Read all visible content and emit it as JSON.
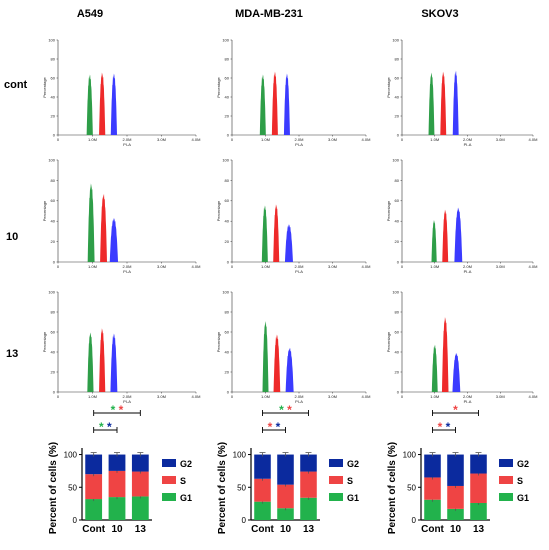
{
  "colors": {
    "G1": "#22b24c",
    "S": "#ef4444",
    "G2": "#0b2a9e",
    "peak_G1": "#2e9e48",
    "peak_S": "#ee2a2a",
    "peak_G2": "#3b3bff"
  },
  "columns": [
    "A549",
    "MDA-MB-231",
    "SKOV3"
  ],
  "rows": [
    "cont",
    "10",
    "13"
  ],
  "histogram_axis": {
    "x_ticks": [
      "0",
      "1.0M",
      "2.0M",
      "3.0M",
      "4.0M"
    ],
    "y_ticks": [
      "0",
      "20",
      "40",
      "60",
      "80",
      "100"
    ],
    "x_label": "PI-A",
    "y_label": "Percentage"
  },
  "bar_axis": {
    "y_ticks": [
      "0",
      "50",
      "100"
    ],
    "y_label": "Percent of cells (%)",
    "categories": [
      "Cont",
      "10",
      "13"
    ],
    "legend": [
      "G2",
      "S",
      "G1"
    ]
  },
  "significance": {
    "star": "*"
  },
  "chart_data": [
    {
      "type": "area",
      "panel": "A549-cont",
      "x_range": [
        0,
        4.0
      ],
      "ylim": [
        0,
        100
      ],
      "peaks": [
        {
          "phase": "G1",
          "center": 0.92,
          "height": 62,
          "width": 0.09
        },
        {
          "phase": "S",
          "center": 1.28,
          "height": 64,
          "width": 0.09
        },
        {
          "phase": "G2",
          "center": 1.62,
          "height": 63,
          "width": 0.09
        }
      ]
    },
    {
      "type": "area",
      "panel": "MDA-MB-231-cont",
      "x_range": [
        0,
        4.0
      ],
      "ylim": [
        0,
        100
      ],
      "peaks": [
        {
          "phase": "G1",
          "center": 0.92,
          "height": 62,
          "width": 0.09
        },
        {
          "phase": "S",
          "center": 1.28,
          "height": 65,
          "width": 0.09
        },
        {
          "phase": "G2",
          "center": 1.64,
          "height": 63,
          "width": 0.09
        }
      ]
    },
    {
      "type": "area",
      "panel": "SKOV3-cont",
      "x_range": [
        0,
        4.0
      ],
      "ylim": [
        0,
        100
      ],
      "peaks": [
        {
          "phase": "G1",
          "center": 0.9,
          "height": 64,
          "width": 0.09
        },
        {
          "phase": "S",
          "center": 1.26,
          "height": 65,
          "width": 0.09
        },
        {
          "phase": "G2",
          "center": 1.64,
          "height": 66,
          "width": 0.09
        }
      ]
    },
    {
      "type": "area",
      "panel": "A549-10",
      "x_range": [
        0,
        4.0
      ],
      "ylim": [
        0,
        100
      ],
      "peaks": [
        {
          "phase": "G1",
          "center": 0.96,
          "height": 75,
          "width": 0.1
        },
        {
          "phase": "S",
          "center": 1.32,
          "height": 65,
          "width": 0.1
        },
        {
          "phase": "G2",
          "center": 1.62,
          "height": 42,
          "width": 0.12
        }
      ]
    },
    {
      "type": "area",
      "panel": "MDA-MB-231-10",
      "x_range": [
        0,
        4.0
      ],
      "ylim": [
        0,
        100
      ],
      "peaks": [
        {
          "phase": "G1",
          "center": 0.98,
          "height": 54,
          "width": 0.09
        },
        {
          "phase": "S",
          "center": 1.32,
          "height": 55,
          "width": 0.09
        },
        {
          "phase": "G2",
          "center": 1.7,
          "height": 36,
          "width": 0.12
        }
      ]
    },
    {
      "type": "area",
      "panel": "SKOV3-10",
      "x_range": [
        0,
        4.0
      ],
      "ylim": [
        0,
        100
      ],
      "peaks": [
        {
          "phase": "G1",
          "center": 0.98,
          "height": 40,
          "width": 0.08
        },
        {
          "phase": "S",
          "center": 1.32,
          "height": 50,
          "width": 0.09
        },
        {
          "phase": "G2",
          "center": 1.72,
          "height": 52,
          "width": 0.12
        }
      ]
    },
    {
      "type": "area",
      "panel": "A549-13",
      "x_range": [
        0,
        4.0
      ],
      "ylim": [
        0,
        100
      ],
      "peaks": [
        {
          "phase": "G1",
          "center": 0.94,
          "height": 58,
          "width": 0.09
        },
        {
          "phase": "S",
          "center": 1.28,
          "height": 62,
          "width": 0.09
        },
        {
          "phase": "G2",
          "center": 1.62,
          "height": 57,
          "width": 0.1
        }
      ]
    },
    {
      "type": "area",
      "panel": "MDA-MB-231-13",
      "x_range": [
        0,
        4.0
      ],
      "ylim": [
        0,
        100
      ],
      "peaks": [
        {
          "phase": "G1",
          "center": 1.0,
          "height": 69,
          "width": 0.09
        },
        {
          "phase": "S",
          "center": 1.34,
          "height": 56,
          "width": 0.1
        },
        {
          "phase": "G2",
          "center": 1.72,
          "height": 43,
          "width": 0.12
        }
      ]
    },
    {
      "type": "area",
      "panel": "SKOV3-13",
      "x_range": [
        0,
        4.0
      ],
      "ylim": [
        0,
        100
      ],
      "peaks": [
        {
          "phase": "G1",
          "center": 1.0,
          "height": 46,
          "width": 0.09
        },
        {
          "phase": "S",
          "center": 1.32,
          "height": 73,
          "width": 0.1
        },
        {
          "phase": "G2",
          "center": 1.66,
          "height": 38,
          "width": 0.12
        }
      ]
    },
    {
      "type": "bar",
      "panel": "A549-bars",
      "stacked": true,
      "categories": [
        "Cont",
        "10",
        "13"
      ],
      "ylim": [
        0,
        110
      ],
      "series": [
        {
          "name": "G1",
          "values": [
            32,
            35,
            36
          ]
        },
        {
          "name": "S",
          "values": [
            38,
            40,
            38
          ]
        },
        {
          "name": "G2",
          "values": [
            30,
            25,
            26
          ]
        }
      ],
      "significance_brackets": [
        {
          "from": "Cont",
          "to": "10",
          "level": 1,
          "stars": [
            "G1",
            "G2"
          ]
        },
        {
          "from": "Cont",
          "to": "13",
          "level": 2,
          "stars": [
            "G1",
            "S"
          ]
        }
      ]
    },
    {
      "type": "bar",
      "panel": "MDA-MB-231-bars",
      "stacked": true,
      "categories": [
        "Cont",
        "10",
        "13"
      ],
      "ylim": [
        0,
        110
      ],
      "series": [
        {
          "name": "G1",
          "values": [
            28,
            18,
            34
          ]
        },
        {
          "name": "S",
          "values": [
            35,
            36,
            40
          ]
        },
        {
          "name": "G2",
          "values": [
            37,
            46,
            26
          ]
        }
      ],
      "significance_brackets": [
        {
          "from": "Cont",
          "to": "10",
          "level": 1,
          "stars": [
            "S",
            "G2"
          ]
        },
        {
          "from": "Cont",
          "to": "13",
          "level": 2,
          "stars": [
            "G1",
            "S"
          ]
        }
      ]
    },
    {
      "type": "bar",
      "panel": "SKOV3-bars",
      "stacked": true,
      "categories": [
        "Cont",
        "10",
        "13"
      ],
      "ylim": [
        0,
        110
      ],
      "series": [
        {
          "name": "G1",
          "values": [
            31,
            17,
            26
          ]
        },
        {
          "name": "S",
          "values": [
            34,
            35,
            45
          ]
        },
        {
          "name": "G2",
          "values": [
            35,
            48,
            29
          ]
        }
      ],
      "significance_brackets": [
        {
          "from": "Cont",
          "to": "10",
          "level": 1,
          "stars": [
            "S",
            "G2"
          ]
        },
        {
          "from": "Cont",
          "to": "13",
          "level": 2,
          "stars": [
            "S"
          ]
        }
      ]
    }
  ]
}
